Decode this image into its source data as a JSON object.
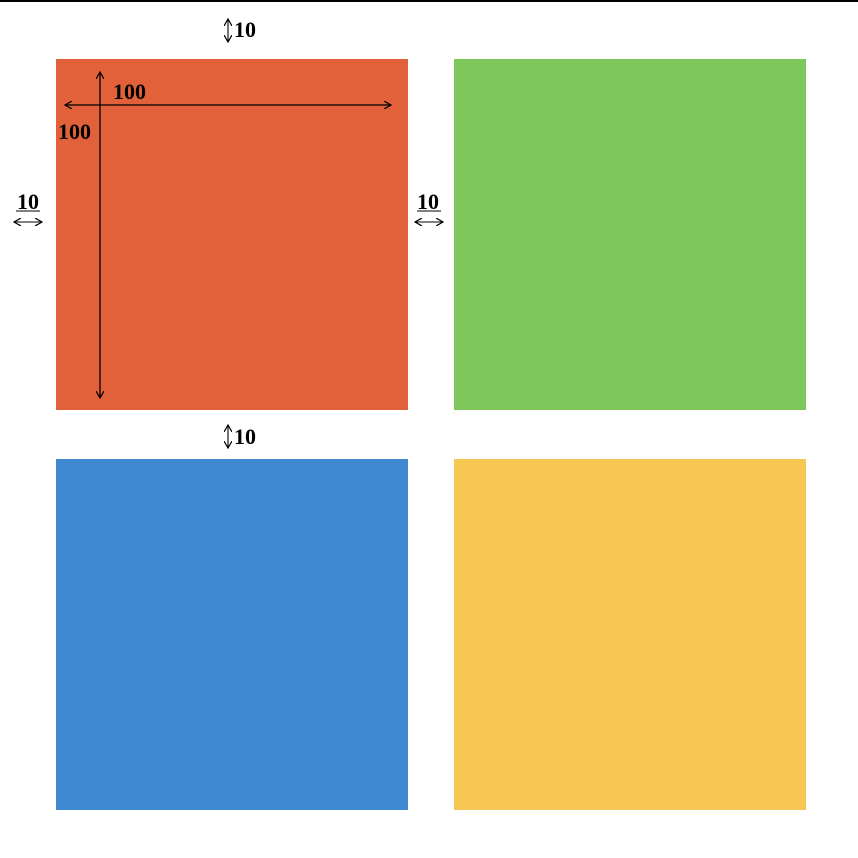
{
  "diagram": {
    "colors": {
      "red": "#e2613a",
      "green": "#7ec75a",
      "blue": "#3f89d0",
      "yellow": "#f6c755",
      "ink": "#000000"
    },
    "labels": {
      "top_gap": "10",
      "middle_gap": "10",
      "left_margin": "10",
      "column_gap": "10",
      "width": "100",
      "height": "100"
    },
    "icons": {
      "vertical_gap_marker": "updown-arrow-icon",
      "horizontal_gap_marker": "leftright-arrow-icon"
    }
  }
}
